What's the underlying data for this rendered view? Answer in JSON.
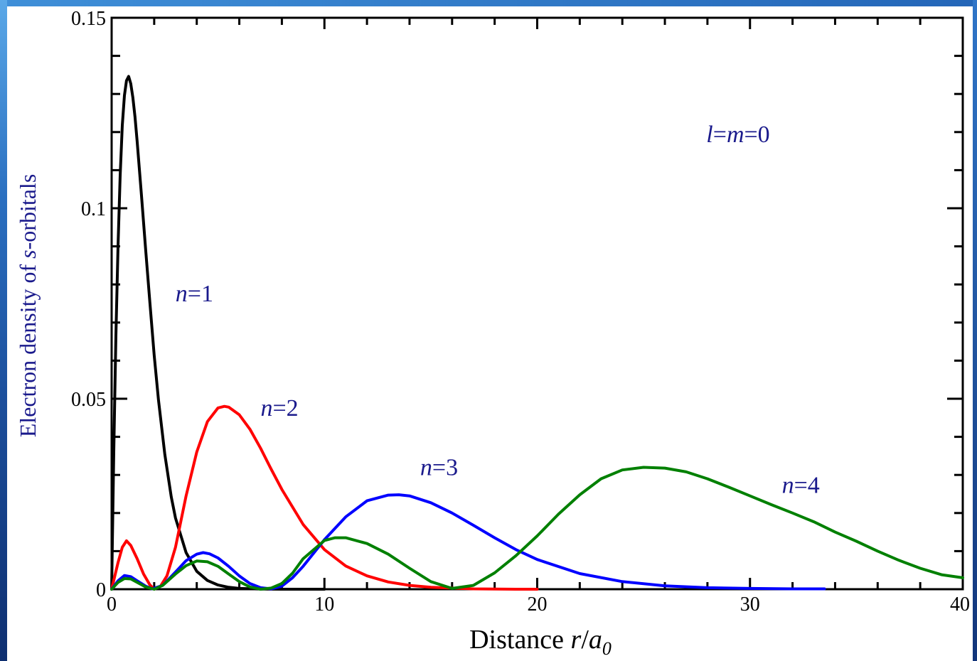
{
  "chart_data": {
    "type": "line",
    "title": "",
    "xlabel": "Distance r/a0",
    "xlabel_parts": {
      "prefix": "Distance ",
      "var": "r",
      "slash": "/",
      "base": "a",
      "sub": "0"
    },
    "ylabel": "Electron density of s-orbitals",
    "ylabel_parts": {
      "prefix": "Electron density of ",
      "var": "s",
      "suffix": "-orbitals"
    },
    "xlim": [
      0,
      40
    ],
    "ylim": [
      0,
      0.15
    ],
    "x_ticks": [
      0,
      10,
      20,
      30,
      40
    ],
    "x_tick_labels": [
      "0",
      "10",
      "20",
      "30",
      "40"
    ],
    "y_ticks": [
      0,
      0.05,
      0.1,
      0.15
    ],
    "y_tick_labels": [
      "0",
      "0.05",
      "0.1",
      "0.15"
    ],
    "grid": false,
    "legend": "none",
    "annotation": {
      "l": "l",
      "eq1": "=",
      "m": "m",
      "eq2": "=0"
    },
    "series": [
      {
        "label_var": "n",
        "label_rest": "=1",
        "label_x": 3.0,
        "label_y": 0.0785,
        "color": "#000000",
        "x": [
          0,
          0.1,
          0.2,
          0.3,
          0.4,
          0.5,
          0.6,
          0.7,
          0.8,
          0.9,
          1.0,
          1.1,
          1.2,
          1.4,
          1.6,
          1.8,
          2.0,
          2.2,
          2.5,
          2.8,
          3.0,
          3.5,
          4.0,
          4.5,
          5.0,
          5.5,
          6.0,
          7.0,
          8.0,
          9.0,
          10.0
        ],
        "y": [
          0,
          0.036,
          0.0666,
          0.0901,
          0.1086,
          0.1218,
          0.1296,
          0.1335,
          0.1346,
          0.1327,
          0.129,
          0.1239,
          0.1175,
          0.1035,
          0.089,
          0.075,
          0.0615,
          0.0498,
          0.0354,
          0.0243,
          0.0187,
          0.0096,
          0.0047,
          0.0023,
          0.0011,
          0.0005,
          0.0002,
          5e-05,
          0,
          0,
          0
        ]
      },
      {
        "label_var": "n",
        "label_rest": "=2",
        "label_x": 7.0,
        "label_y": 0.0455,
        "color": "#ff0000",
        "x": [
          0,
          0.3,
          0.5,
          0.7,
          0.9,
          1.2,
          1.5,
          1.8,
          2.0,
          2.3,
          2.6,
          3.0,
          3.5,
          4.0,
          4.5,
          5.0,
          5.3,
          5.5,
          6.0,
          6.5,
          7.0,
          7.5,
          8.0,
          9.0,
          10.0,
          11.0,
          12.0,
          13.0,
          14.0,
          15.0,
          16.0,
          17.0,
          18.0,
          19.0,
          20.0
        ],
        "y": [
          0,
          0.007,
          0.011,
          0.0127,
          0.0115,
          0.008,
          0.004,
          0.0011,
          0,
          0.0008,
          0.0035,
          0.011,
          0.0245,
          0.036,
          0.044,
          0.0476,
          0.048,
          0.0478,
          0.0458,
          0.042,
          0.037,
          0.0315,
          0.0262,
          0.017,
          0.0104,
          0.0061,
          0.0035,
          0.0019,
          0.001,
          0.0005,
          0.0003,
          0.0001,
          5e-05,
          0,
          0
        ]
      },
      {
        "label_var": "n",
        "label_rest": "=3",
        "label_x": 14.5,
        "label_y": 0.0455,
        "color": "#0000ff",
        "x": [
          0,
          0.3,
          0.6,
          0.9,
          1.2,
          1.6,
          1.9,
          2.4,
          3.0,
          3.5,
          4.0,
          4.3,
          4.6,
          5.0,
          5.5,
          6.0,
          6.5,
          7.0,
          7.5,
          8.0,
          8.5,
          9.0,
          10.0,
          11.0,
          12.0,
          13.0,
          13.5,
          14.0,
          15.0,
          16.0,
          17.0,
          18.0,
          19.0,
          20.0,
          22.0,
          24.0,
          26.0,
          28.0,
          30.0,
          32.0,
          33.5
        ],
        "y": [
          0,
          0.0022,
          0.0036,
          0.0033,
          0.0022,
          0.0008,
          0.0001,
          0.001,
          0.0045,
          0.0075,
          0.0092,
          0.0096,
          0.0093,
          0.0082,
          0.006,
          0.0035,
          0.0015,
          0.0004,
          0.0001,
          0.0008,
          0.003,
          0.006,
          0.013,
          0.019,
          0.0232,
          0.0247,
          0.0248,
          0.0245,
          0.0227,
          0.02,
          0.0168,
          0.0135,
          0.0104,
          0.0078,
          0.0041,
          0.002,
          0.0009,
          0.0004,
          0.0002,
          0.0001,
          0.0001
        ]
      },
      {
        "label_var": "n",
        "label_rest": "=4",
        "label_x": 31.5,
        "label_y": 0.0455,
        "color": "#008000",
        "x": [
          0,
          0.3,
          0.6,
          0.9,
          1.2,
          1.6,
          2.0,
          2.4,
          3.0,
          3.5,
          4.0,
          4.5,
          5.0,
          5.5,
          6.0,
          6.5,
          7.0,
          7.5,
          8.0,
          8.5,
          9.0,
          10.0,
          10.5,
          11.0,
          12.0,
          13.0,
          14.0,
          15.0,
          16.0,
          17.0,
          18.0,
          19.0,
          20.0,
          21.0,
          22.0,
          23.0,
          24.0,
          25.0,
          26.0,
          27.0,
          28.0,
          29.0,
          30.0,
          31.0,
          32.0,
          33.0,
          34.0,
          35.0,
          36.0,
          37.0,
          38.0,
          39.0,
          40.0
        ],
        "y": [
          0,
          0.0018,
          0.0028,
          0.0027,
          0.0018,
          0.0006,
          0,
          0.001,
          0.004,
          0.0062,
          0.0074,
          0.0072,
          0.006,
          0.004,
          0.002,
          0.0006,
          0,
          0.0003,
          0.0015,
          0.0042,
          0.008,
          0.0128,
          0.0135,
          0.0135,
          0.012,
          0.0092,
          0.0055,
          0.002,
          0.0002,
          0.001,
          0.0043,
          0.0088,
          0.014,
          0.0197,
          0.0248,
          0.029,
          0.0313,
          0.032,
          0.0318,
          0.0308,
          0.029,
          0.0268,
          0.0245,
          0.0222,
          0.02,
          0.0177,
          0.015,
          0.0126,
          0.01,
          0.0076,
          0.0055,
          0.0038,
          0.003
        ]
      }
    ]
  }
}
